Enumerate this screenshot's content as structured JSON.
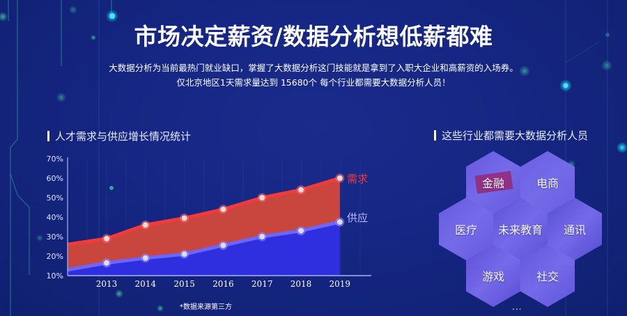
{
  "header": {
    "title": "市场决定薪资/数据分析想低薪都难",
    "subtitle_line1": "大数据分析为当前最热门就业缺口，掌握了大数据分析这门技能就是拿到了入职大企业和高薪资的入场券。",
    "subtitle_line2": "仅北京地区1天需求量达到 15680个 每个行业都需要大数据分析人员！"
  },
  "left_section": {
    "title": "人才需求与供应增长情况统计",
    "footnote": "*数据来源第三方"
  },
  "right_section": {
    "title": "这些行业都需要大数据分析人员",
    "industries": [
      {
        "label": "金融",
        "icon": "finance-card-icon",
        "color": "#6b5be0"
      },
      {
        "label": "电商",
        "icon": "shopping-cart-icon",
        "color": "#6e62e6"
      },
      {
        "label": "医疗",
        "icon": "stethoscope-icon",
        "color": "#6a5ee0"
      },
      {
        "label": "未来教育",
        "icon": "classroom-icon",
        "color": "#5f54d8"
      },
      {
        "label": "通讯",
        "icon": "5g-icon",
        "color": "#5a4fd6"
      },
      {
        "label": "游戏",
        "icon": "game-character-icon",
        "color": "#6250dc"
      },
      {
        "label": "社交",
        "icon": "phone-chat-icon",
        "color": "#6558de"
      }
    ],
    "more": "..."
  },
  "colors": {
    "background": "#152683",
    "demand": "#f23a3a",
    "demand_fill": "#c9463f",
    "supply": "#6a66ff",
    "supply_fill": "#2f2fe0",
    "axis": "#9aa4e8",
    "text": "#ffffff"
  },
  "chart_data": {
    "type": "area",
    "title": "人才需求与供应增长情况统计",
    "xlabel": "",
    "ylabel": "",
    "categories": [
      "2013",
      "2014",
      "2015",
      "2016",
      "2017",
      "2018",
      "2019"
    ],
    "y_ticks": [
      "10%",
      "20%",
      "30%",
      "40%",
      "50%",
      "60%",
      "70%"
    ],
    "ylim": [
      10,
      70
    ],
    "grid": true,
    "series": [
      {
        "name": "需求",
        "values": [
          29,
          36,
          39.5,
          44,
          50,
          54,
          60
        ],
        "start_value": 26,
        "color": "#f23a3a"
      },
      {
        "name": "供应",
        "values": [
          16.5,
          19,
          21,
          25.5,
          30,
          33,
          37.5
        ],
        "start_value": 13,
        "color": "#6a66ff"
      }
    ],
    "legend_position": "inline-right",
    "annotation": "*数据来源第三方"
  }
}
